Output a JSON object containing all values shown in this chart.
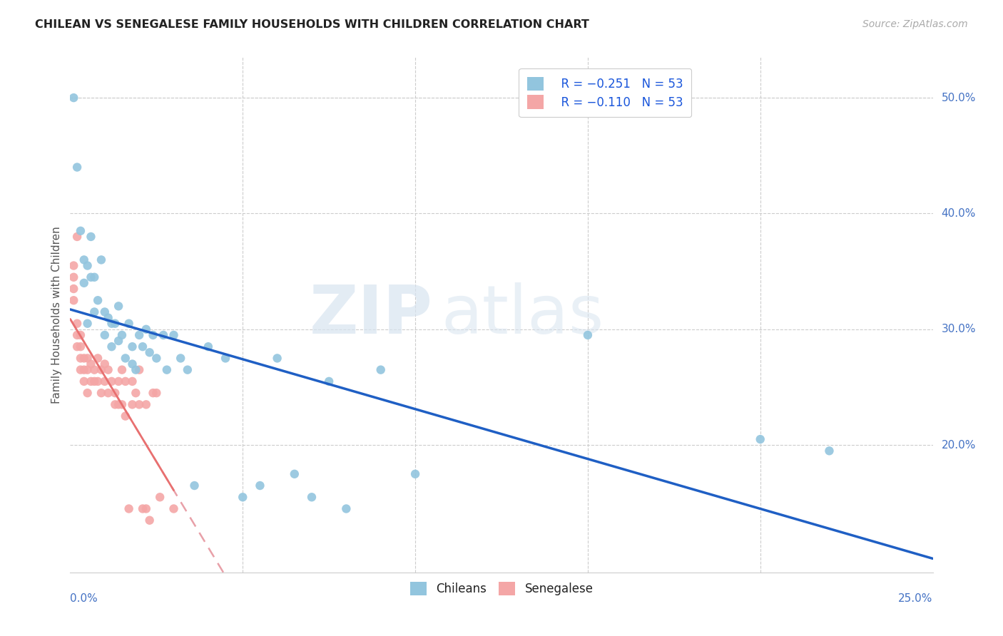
{
  "title": "CHILEAN VS SENEGALESE FAMILY HOUSEHOLDS WITH CHILDREN CORRELATION CHART",
  "source": "Source: ZipAtlas.com",
  "ylabel": "Family Households with Children",
  "right_yticks": [
    "50.0%",
    "40.0%",
    "30.0%",
    "20.0%"
  ],
  "right_ytick_vals": [
    0.5,
    0.4,
    0.3,
    0.2
  ],
  "xlim": [
    0.0,
    0.25
  ],
  "ylim": [
    0.09,
    0.535
  ],
  "legend_r_chileans": "R = −0.251",
  "legend_n_chileans": "N = 53",
  "legend_r_senegalese": "R = −0.110",
  "legend_n_senegalese": "N = 53",
  "chilean_color": "#92c5de",
  "senegalese_color": "#f4a6a6",
  "blue_line_color": "#1f5fc4",
  "pink_line_color": "#e8a0a8",
  "watermark_zip": "ZIP",
  "watermark_atlas": "atlas",
  "chileans_x": [
    0.001,
    0.002,
    0.003,
    0.004,
    0.004,
    0.005,
    0.005,
    0.006,
    0.006,
    0.007,
    0.007,
    0.008,
    0.009,
    0.01,
    0.01,
    0.011,
    0.012,
    0.012,
    0.013,
    0.014,
    0.014,
    0.015,
    0.016,
    0.017,
    0.018,
    0.018,
    0.019,
    0.02,
    0.021,
    0.022,
    0.023,
    0.024,
    0.025,
    0.027,
    0.028,
    0.03,
    0.032,
    0.034,
    0.036,
    0.04,
    0.045,
    0.05,
    0.055,
    0.06,
    0.065,
    0.07,
    0.075,
    0.08,
    0.09,
    0.1,
    0.15,
    0.2,
    0.22
  ],
  "chileans_y": [
    0.5,
    0.44,
    0.385,
    0.36,
    0.34,
    0.355,
    0.305,
    0.38,
    0.345,
    0.345,
    0.315,
    0.325,
    0.36,
    0.315,
    0.295,
    0.31,
    0.305,
    0.285,
    0.305,
    0.32,
    0.29,
    0.295,
    0.275,
    0.305,
    0.285,
    0.27,
    0.265,
    0.295,
    0.285,
    0.3,
    0.28,
    0.295,
    0.275,
    0.295,
    0.265,
    0.295,
    0.275,
    0.265,
    0.165,
    0.285,
    0.275,
    0.155,
    0.165,
    0.275,
    0.175,
    0.155,
    0.255,
    0.145,
    0.265,
    0.175,
    0.295,
    0.205,
    0.195
  ],
  "senegalese_x": [
    0.001,
    0.001,
    0.001,
    0.001,
    0.002,
    0.002,
    0.002,
    0.002,
    0.003,
    0.003,
    0.003,
    0.003,
    0.004,
    0.004,
    0.004,
    0.005,
    0.005,
    0.005,
    0.006,
    0.006,
    0.007,
    0.007,
    0.008,
    0.008,
    0.009,
    0.009,
    0.01,
    0.01,
    0.011,
    0.011,
    0.012,
    0.013,
    0.013,
    0.014,
    0.014,
    0.015,
    0.015,
    0.016,
    0.016,
    0.017,
    0.018,
    0.018,
    0.019,
    0.02,
    0.02,
    0.021,
    0.022,
    0.022,
    0.023,
    0.024,
    0.025,
    0.026,
    0.03
  ],
  "senegalese_y": [
    0.325,
    0.335,
    0.355,
    0.345,
    0.305,
    0.38,
    0.295,
    0.285,
    0.295,
    0.285,
    0.275,
    0.265,
    0.275,
    0.265,
    0.255,
    0.275,
    0.265,
    0.245,
    0.27,
    0.255,
    0.265,
    0.255,
    0.275,
    0.255,
    0.265,
    0.245,
    0.27,
    0.255,
    0.265,
    0.245,
    0.255,
    0.245,
    0.235,
    0.255,
    0.235,
    0.265,
    0.235,
    0.255,
    0.225,
    0.145,
    0.255,
    0.235,
    0.245,
    0.265,
    0.235,
    0.145,
    0.235,
    0.145,
    0.135,
    0.245,
    0.245,
    0.155,
    0.145
  ]
}
